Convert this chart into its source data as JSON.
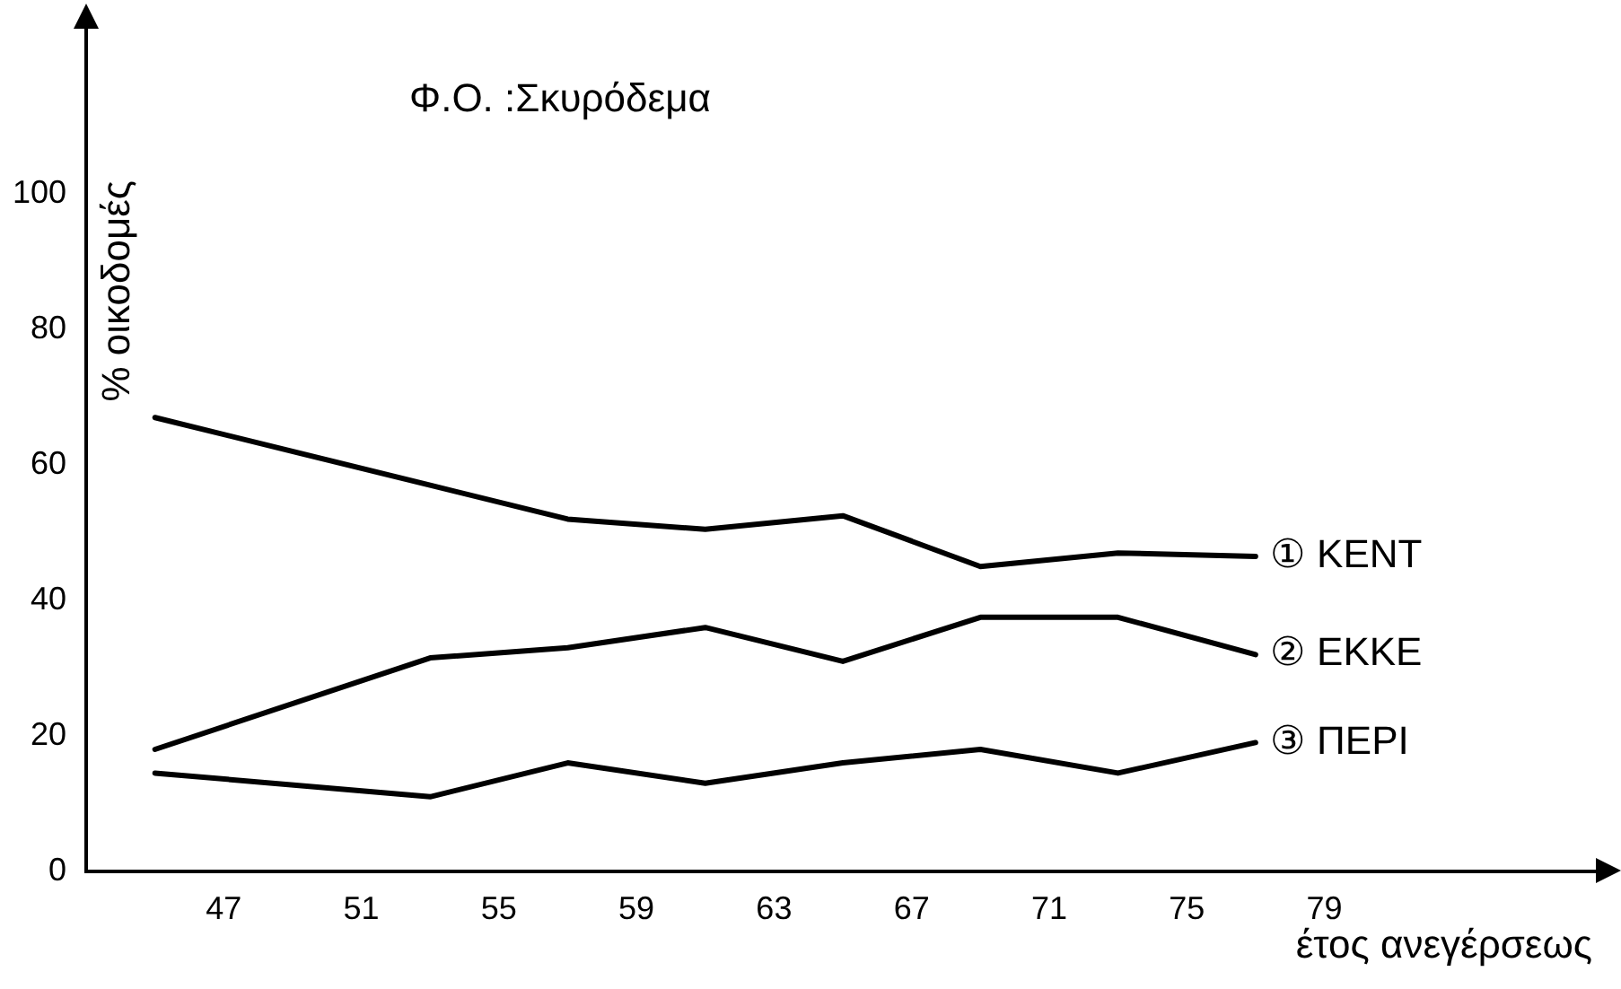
{
  "chart_data": {
    "type": "line",
    "title": "Φ.Ο. :Σκυρόδεμα",
    "xlabel": "έτος ανεγέρσεως",
    "ylabel": "% οικοδομές",
    "x": [
      45,
      53,
      57,
      61,
      65,
      69,
      73,
      77
    ],
    "series": [
      {
        "name": "① KENT",
        "color": "#000000",
        "values": [
          67,
          57,
          52,
          50.5,
          52.5,
          45,
          47,
          46.5
        ]
      },
      {
        "name": "② EKKE",
        "color": "#000000",
        "values": [
          18,
          31.5,
          33,
          36,
          31,
          37.5,
          37.5,
          32
        ]
      },
      {
        "name": "③ ΠΕΡΙ",
        "color": "#000000",
        "values": [
          14.5,
          11,
          16,
          13,
          16,
          18,
          14.5,
          19
        ]
      }
    ],
    "xlim": [
      43,
      87
    ],
    "ylim": [
      0,
      125
    ],
    "xticks": [
      47,
      51,
      55,
      59,
      63,
      67,
      71,
      75,
      79
    ],
    "yticks": [
      0,
      20,
      40,
      60,
      80,
      100
    ],
    "grid": false,
    "legend": false,
    "marker": "none",
    "line_style": "solid"
  }
}
